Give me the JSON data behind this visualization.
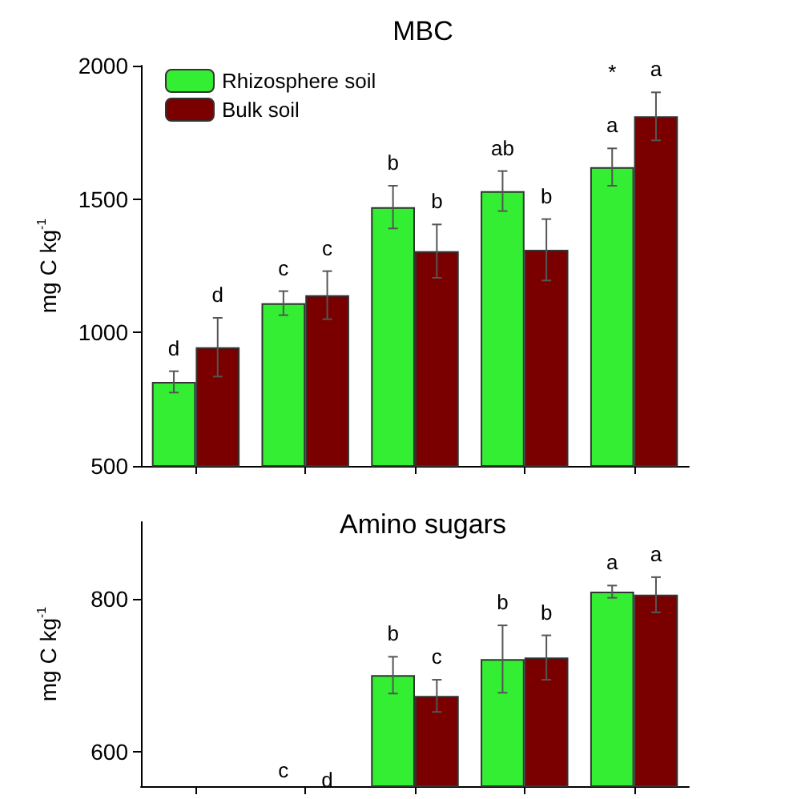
{
  "chart_data": [
    {
      "type": "bar",
      "title": "MBC",
      "ylabel": "mg C kg$^{-1}$",
      "categories": [
        null,
        null,
        null,
        null,
        null
      ],
      "ylim": [
        500,
        2000
      ],
      "yticks": [
        500,
        1000,
        1500,
        2000
      ],
      "grid": false,
      "legend": "top left",
      "annotations": [
        "*"
      ],
      "series": [
        {
          "name": "Rhizosphere soil",
          "color": "#33ee33",
          "values": [
            815,
            1110,
            1470,
            1530,
            1620
          ],
          "errors": [
            40,
            45,
            80,
            75,
            70
          ],
          "value_labels": [
            "d",
            "c",
            "b",
            "ab",
            "a"
          ]
        },
        {
          "name": "Bulk soil",
          "color": "#7a0000",
          "values": [
            945,
            1140,
            1305,
            1310,
            1810
          ],
          "errors": [
            110,
            90,
            100,
            115,
            90
          ],
          "value_labels": [
            "d",
            "c",
            "b",
            "b",
            "a"
          ]
        }
      ]
    },
    {
      "type": "bar",
      "title": "Amino sugars",
      "ylabel": "mg C kg$^{-1}$",
      "categories": [
        null,
        null,
        null,
        null,
        null
      ],
      "ylim": [
        555,
        900
      ],
      "yticks": [
        600,
        800
      ],
      "grid": false,
      "legend": false,
      "annotations": [
        "c",
        "d"
      ],
      "series": [
        {
          "color": "#33ee33",
          "values": [
            null,
            null,
            700,
            721,
            809
          ],
          "errors": [
            null,
            null,
            24,
            44,
            8
          ],
          "value_labels": [
            null,
            null,
            "b",
            "b",
            "a"
          ]
        },
        {
          "color": "#7a0000",
          "values": [
            null,
            null,
            673,
            723,
            805
          ],
          "errors": [
            null,
            null,
            21,
            29,
            23
          ],
          "value_labels": [
            null,
            null,
            "c",
            "b",
            "a"
          ]
        }
      ]
    }
  ]
}
